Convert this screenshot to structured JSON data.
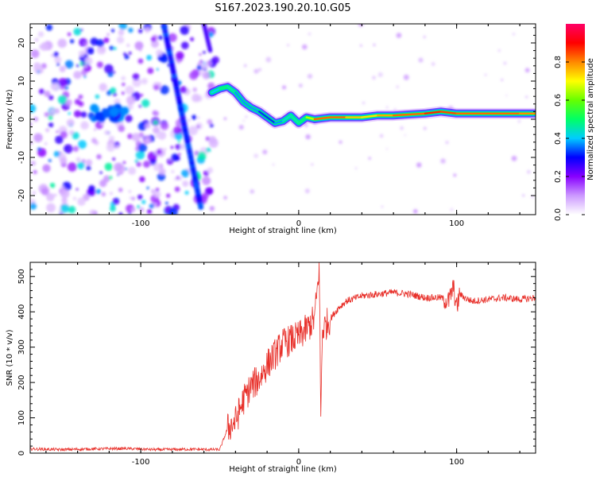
{
  "title": "S167.2023.190.20.10.G05",
  "chart_data": [
    {
      "type": "heatmap",
      "xlabel": "Height of straight line (km)",
      "ylabel": "Frequency (Hz)",
      "xlim": [
        -170,
        150
      ],
      "ylim": [
        -25,
        25
      ],
      "x_ticks": [
        -100,
        0,
        100
      ],
      "y_ticks": [
        -20,
        -10,
        0,
        10,
        20
      ],
      "colorbar": {
        "label": "Normalized spectral amplitude",
        "range": [
          0,
          1
        ],
        "ticks": [
          "0.0",
          "0.2",
          "0.4",
          "0.6",
          "0.8"
        ],
        "colors": [
          "#ffffff",
          "#cc99ff",
          "#8800ff",
          "#0000ff",
          "#00ccff",
          "#00ff66",
          "#66ff00",
          "#ffff00",
          "#ff8800",
          "#ff0000",
          "#ff0066"
        ]
      },
      "ridge": {
        "x": [
          -55,
          -50,
          -45,
          -40,
          -35,
          -30,
          -25,
          -20,
          -15,
          -10,
          -5,
          0,
          5,
          10,
          20,
          30,
          40,
          50,
          60,
          80,
          90,
          100,
          120,
          140,
          150
        ],
        "y": [
          7,
          8,
          8.5,
          7,
          4.5,
          3,
          2,
          0.5,
          -1,
          -0.5,
          1,
          -1,
          0.5,
          0,
          0.5,
          0.5,
          0.5,
          1,
          1,
          1.5,
          2,
          1.5,
          1.5,
          1.5,
          1.5
        ],
        "amplitude": [
          0.35,
          0.45,
          0.5,
          0.4,
          0.35,
          0.4,
          0.35,
          0.3,
          0.35,
          0.4,
          0.45,
          0.45,
          0.5,
          0.8,
          0.85,
          0.8,
          0.7,
          0.75,
          0.8,
          0.85,
          0.9,
          0.8,
          0.85,
          0.8,
          0.8
        ]
      },
      "streak": {
        "x": [
          -62,
          -85
        ],
        "y": [
          -23,
          24
        ]
      },
      "cluster": {
        "x": [
          -130,
          -110
        ],
        "y": [
          0,
          3
        ]
      }
    },
    {
      "type": "line",
      "xlabel": "Height of straight line (km)",
      "ylabel": "SNR (10 * v/v)",
      "xlim": [
        -170,
        150
      ],
      "ylim": [
        0,
        540
      ],
      "x_ticks": [
        -100,
        0,
        100
      ],
      "y_ticks": [
        0,
        100,
        200,
        300,
        400,
        500
      ],
      "color": "#e8302a",
      "x": [
        -170,
        -150,
        -130,
        -110,
        -90,
        -70,
        -50,
        -45,
        -40,
        -35,
        -30,
        -25,
        -20,
        -15,
        -10,
        -5,
        0,
        5,
        10,
        12,
        13,
        14,
        15,
        20,
        25,
        30,
        40,
        50,
        60,
        70,
        80,
        90,
        95,
        98,
        100,
        102,
        105,
        110,
        120,
        130,
        140,
        150
      ],
      "y": [
        12,
        10,
        12,
        13,
        10,
        11,
        10,
        70,
        90,
        150,
        190,
        210,
        250,
        280,
        310,
        320,
        330,
        350,
        380,
        470,
        540,
        100,
        350,
        380,
        410,
        430,
        445,
        450,
        455,
        450,
        440,
        440,
        430,
        470,
        410,
        450,
        440,
        430,
        435,
        440,
        435,
        440
      ]
    }
  ]
}
